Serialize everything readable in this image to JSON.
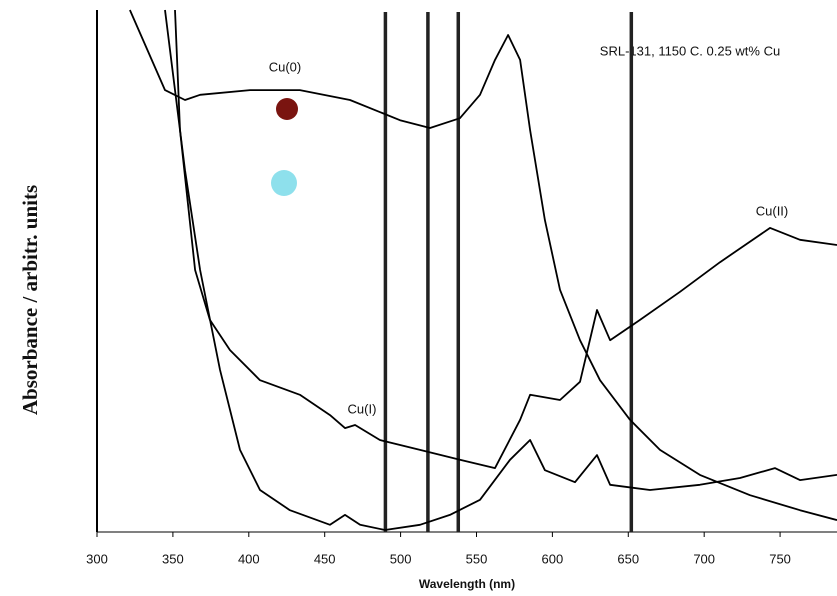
{
  "chart_data": {
    "type": "line",
    "title": "SRL-131, 1150 C. 0.25 wt% Cu",
    "xlabel": "Wavelength (nm)",
    "ylabel": "Absorbance / arbitr. units",
    "xlim": [
      300,
      787.5
    ],
    "ylim": [
      0,
      100
    ],
    "xticks": [
      300,
      350,
      400,
      450,
      500,
      550,
      600,
      650,
      700,
      750
    ],
    "vlines": [
      490,
      518,
      538,
      652
    ],
    "series": [
      {
        "name": "Cu(0)",
        "color": "#000000",
        "x": [
          321.7,
          344.8,
          358,
          367.9,
          400.8,
          433.7,
          466.7,
          499.6,
          519.4,
          539.1,
          552.3,
          562.2,
          570.8,
          578.7,
          585.3,
          595.1,
          605,
          618.2,
          631.4,
          651.1,
          670.9,
          697.2,
          730.2,
          763.1,
          787.5
        ],
        "values": [
          100,
          84.6,
          82.7,
          83.7,
          84.6,
          84.6,
          82.7,
          78.8,
          77.3,
          79.2,
          83.7,
          90.4,
          95.2,
          90.4,
          76.9,
          59.6,
          46.2,
          36.5,
          28.8,
          21.2,
          15.4,
          10.6,
          6.7,
          3.8,
          1.9
        ]
      },
      {
        "name": "Cu(I)",
        "color": "#000000",
        "x": [
          344.8,
          358,
          367.9,
          381,
          394.2,
          407.4,
          427.1,
          453.5,
          463.4,
          473.3,
          489.7,
          512.8,
          532.5,
          552.3,
          572.1,
          585.3,
          595.1,
          614.9,
          629.4,
          638,
          664.3,
          697.2,
          723.6,
          746.6,
          763.1,
          787.5
        ],
        "values": [
          100,
          69.2,
          50,
          30.8,
          15.4,
          7.7,
          3.8,
          1,
          2.9,
          1,
          0,
          1,
          2.9,
          5.8,
          13.5,
          17.3,
          11.5,
          9.2,
          14.4,
          8.7,
          7.7,
          8.7,
          10,
          11.9,
          9.6,
          10.6
        ]
      },
      {
        "name": "Cu(II)",
        "color": "#000000",
        "x": [
          351.4,
          354.7,
          364.6,
          374.4,
          387.6,
          407.4,
          433.7,
          453.5,
          463.4,
          470,
          486.4,
          512.8,
          539.1,
          562.2,
          578.7,
          585.3,
          605,
          618.2,
          629.4,
          638,
          657.7,
          684.1,
          710.4,
          743.4,
          763.1,
          787.5
        ],
        "values": [
          100,
          76.9,
          50,
          40.4,
          34.6,
          28.8,
          26,
          22.1,
          19.6,
          20.2,
          17.3,
          15.4,
          13.5,
          11.9,
          21.2,
          26,
          25,
          28.5,
          42.3,
          36.5,
          40.4,
          45.8,
          51.5,
          58.1,
          55.8,
          54.8
        ]
      }
    ]
  }
}
